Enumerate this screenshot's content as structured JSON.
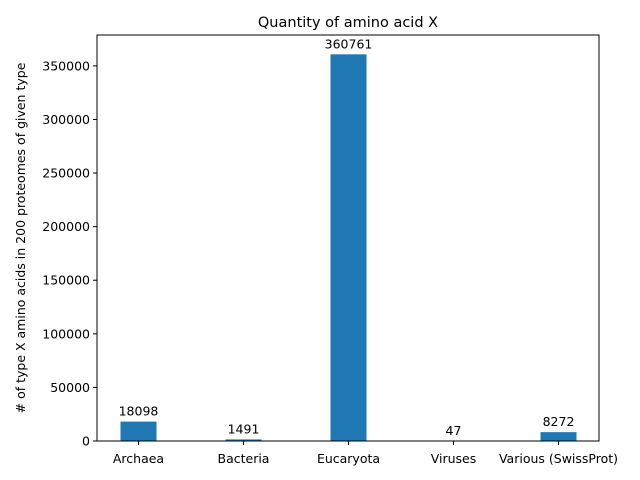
{
  "chart_data": {
    "type": "bar",
    "title": "Quantity of amino acid X",
    "xlabel": "",
    "ylabel": "# of type X amino acids in 200 proteomes of given type",
    "categories": [
      "Archaea",
      "Bacteria",
      "Eucaryota",
      "Viruses",
      "Various (SwissProt)"
    ],
    "values": [
      18098,
      1491,
      360761,
      47,
      8272
    ],
    "data_labels": [
      "18098",
      "1491",
      "360761",
      "47",
      "8272"
    ],
    "ylim": [
      0,
      378799
    ],
    "yticks": [
      0,
      50000,
      100000,
      150000,
      200000,
      250000,
      300000,
      350000
    ],
    "ytick_labels": [
      "0",
      "50000",
      "100000",
      "150000",
      "200000",
      "250000",
      "300000",
      "350000"
    ],
    "bar_color": "#1f77b4",
    "grid": false,
    "legend": "none"
  }
}
